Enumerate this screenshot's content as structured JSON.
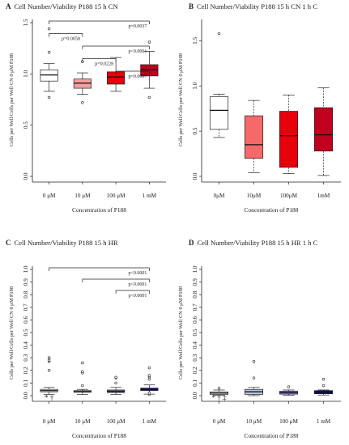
{
  "charts": [
    {
      "letter": "A",
      "title": "Cell Number/Viability P188 15 h CN",
      "type": "box",
      "categories": [
        "0 μM",
        "10 μM",
        "100 μM",
        "1 mM"
      ],
      "xlabel": "Concentration of P188",
      "ylabel": "Cells per Well/Cells per Well CN 0 μM P188",
      "ylim": [
        0,
        1.5
      ],
      "yticks": [
        0.0,
        0.5,
        1.0,
        1.5
      ],
      "ytick_labels": [
        "0.0",
        "0.5",
        "1.0",
        "1.5"
      ],
      "grid": false,
      "colors": [
        "#ffffff",
        "#f4a0a0",
        "#e8000b",
        "#c0001e"
      ],
      "boxes": [
        {
          "min": 0.83,
          "q1": 0.93,
          "median": 0.99,
          "q3": 1.04,
          "max": 1.1,
          "outliers": [
            0.77,
            1.21,
            1.44
          ]
        },
        {
          "min": 0.8,
          "q1": 0.86,
          "median": 0.91,
          "q3": 0.95,
          "max": 1.01,
          "outliers": [
            0.72,
            1.12
          ]
        },
        {
          "min": 0.83,
          "q1": 0.9,
          "median": 0.97,
          "q3": 1.02,
          "max": 1.16,
          "outliers": []
        },
        {
          "min": 0.86,
          "q1": 0.98,
          "median": 1.04,
          "q3": 1.09,
          "max": 1.22,
          "outliers": [
            0.77,
            1.31
          ]
        }
      ],
      "significance": [
        {
          "from": 0,
          "to": 3,
          "label": "p=0.0037"
        },
        {
          "from": 0,
          "to": 1,
          "label": "p=0.0058"
        },
        {
          "from": 1,
          "to": 3,
          "label": "p<0.0001"
        },
        {
          "from": 1,
          "to": 2,
          "label": "p=0.0228"
        },
        {
          "from": 2,
          "to": 3,
          "label": "p=0.0007"
        }
      ],
      "annotations": []
    },
    {
      "letter": "B",
      "title": "Cell Number/Viability P188 15 h CN 1 h C",
      "type": "box",
      "categories": [
        "0μM",
        "10μM",
        "100μM",
        "1mM"
      ],
      "xlabel": "Concentration of P188",
      "ylabel": "Cells per Well/Cells per Well CN 0 μM P188",
      "ylim": [
        0,
        1.7
      ],
      "yticks": [
        0.0,
        0.5,
        1.0,
        1.5
      ],
      "ytick_labels": [
        "0.0",
        "0.5",
        "1.0",
        "1.5"
      ],
      "grid": false,
      "colors": [
        "#ffffff",
        "#f46a6a",
        "#e8000b",
        "#c0001e"
      ],
      "boxes": [
        {
          "min": 0.43,
          "q1": 0.52,
          "median": 0.73,
          "q3": 0.88,
          "max": 0.91,
          "outliers": [
            1.58
          ]
        },
        {
          "min": 0.04,
          "q1": 0.2,
          "median": 0.35,
          "q3": 0.67,
          "max": 0.84,
          "outliers": []
        },
        {
          "min": 0.03,
          "q1": 0.1,
          "median": 0.45,
          "q3": 0.72,
          "max": 0.9,
          "outliers": []
        },
        {
          "min": 0.01,
          "q1": 0.28,
          "median": 0.46,
          "q3": 0.76,
          "max": 0.98,
          "outliers": []
        }
      ],
      "significance": [],
      "annotations": []
    },
    {
      "letter": "C",
      "title": "Cell Number/Viability P188 15 h HR",
      "type": "box",
      "categories": [
        "0 μM",
        "10 μM",
        "100 μM",
        "1 mM"
      ],
      "xlabel": "Concentration of P188",
      "ylabel": "Cells per Well/Cells per Well CN 0 μM P188",
      "ylim": [
        0,
        1.0
      ],
      "yticks": [
        0.0,
        0.1,
        0.2,
        0.3,
        0.4,
        0.5,
        0.6,
        0.7,
        0.8,
        0.9,
        1.0
      ],
      "ytick_labels": [
        "0.0",
        "0.1",
        "0.2",
        "0.3",
        "0.4",
        "0.5",
        "0.6",
        "0.7",
        "0.8",
        "0.9",
        "1.0"
      ],
      "grid": false,
      "colors": [
        "#ffffff",
        "#d8dce8",
        "#6f6bc0",
        "#1a1a8a"
      ],
      "boxes": [
        {
          "min": 0.01,
          "q1": 0.03,
          "median": 0.04,
          "q3": 0.05,
          "max": 0.065,
          "outliers": [
            0.2,
            0.27,
            0.28,
            0.3,
            0.3
          ]
        },
        {
          "min": 0.01,
          "q1": 0.027,
          "median": 0.032,
          "q3": 0.04,
          "max": 0.05,
          "outliers": [
            0.08,
            0.18,
            0.19,
            0.26
          ]
        },
        {
          "min": 0.01,
          "q1": 0.025,
          "median": 0.033,
          "q3": 0.045,
          "max": 0.065,
          "outliers": [
            0.1,
            0.14,
            0.145
          ]
        },
        {
          "min": 0.012,
          "q1": 0.04,
          "median": 0.05,
          "q3": 0.06,
          "max": 0.085,
          "outliers": [
            0.01,
            0.02,
            0.13,
            0.15,
            0.16,
            0.22
          ]
        }
      ],
      "significance": [
        {
          "from": 0,
          "to": 3,
          "label": "p<0.0001"
        },
        {
          "from": 1,
          "to": 3,
          "label": "p<0.0001"
        },
        {
          "from": 2,
          "to": 3,
          "label": "p<0.0001"
        }
      ],
      "annotations": [
        {
          "category": 0,
          "text": "* †"
        }
      ]
    },
    {
      "letter": "D",
      "title": "Cell Number/Viability P188 15 h HR 1 h C",
      "type": "box",
      "categories": [
        "0 μM",
        "10 μM",
        "100 μM",
        "1 mM"
      ],
      "xlabel": "Concentration of P188",
      "ylabel": "Cells per Well/Cells per Well CN 0 μM P188",
      "ylim": [
        0,
        1.0
      ],
      "yticks": [
        0.0,
        0.1,
        0.2,
        0.3,
        0.4,
        0.5,
        0.6,
        0.7,
        0.8,
        0.9,
        1.0
      ],
      "ytick_labels": [
        "0.0",
        "0.1",
        "0.2",
        "0.3",
        "0.4",
        "0.5",
        "0.6",
        "0.7",
        "0.8",
        "0.9",
        "1.0"
      ],
      "grid": false,
      "colors": [
        "#ffffff",
        "#b8c8e8",
        "#6f6bc0",
        "#0a0a8a"
      ],
      "boxes": [
        {
          "min": 0.003,
          "q1": 0.01,
          "median": 0.02,
          "q3": 0.03,
          "max": 0.045,
          "outliers": [
            0.06
          ]
        },
        {
          "min": 0.0,
          "q1": 0.01,
          "median": 0.03,
          "q3": 0.05,
          "max": 0.065,
          "outliers": [
            0.14,
            0.27
          ]
        },
        {
          "min": 0.003,
          "q1": 0.012,
          "median": 0.025,
          "q3": 0.035,
          "max": 0.045,
          "outliers": [
            0.07
          ]
        },
        {
          "min": 0.005,
          "q1": 0.015,
          "median": 0.027,
          "q3": 0.04,
          "max": 0.045,
          "outliers": [
            0.08,
            0.13
          ]
        }
      ],
      "significance": [],
      "annotations": [
        {
          "category": 0,
          "text": "* † ‡"
        }
      ]
    }
  ],
  "chart_data": [
    {
      "type": "box",
      "title": "Cell Number/Viability P188 15 h CN",
      "categories": [
        "0 μM",
        "10 μM",
        "100 μM",
        "1 mM"
      ],
      "xlabel": "Concentration of P188",
      "ylabel": "Cells per Well/Cells per Well CN 0 μM P188",
      "ylim": [
        0,
        1.5
      ]
    },
    {
      "type": "box",
      "title": "Cell Number/Viability P188 15 h CN 1 h C",
      "categories": [
        "0μM",
        "10μM",
        "100μM",
        "1mM"
      ],
      "xlabel": "Concentration of P188",
      "ylabel": "Cells per Well/Cells per Well CN 0 μM P188",
      "ylim": [
        0,
        1.7
      ]
    },
    {
      "type": "box",
      "title": "Cell Number/Viability P188 15 h HR",
      "categories": [
        "0 μM",
        "10 μM",
        "100 μM",
        "1 mM"
      ],
      "xlabel": "Concentration of P188",
      "ylabel": "Cells per Well/Cells per Well CN 0 μM P188",
      "ylim": [
        0,
        1.0
      ]
    },
    {
      "type": "box",
      "title": "Cell Number/Viability P188 15 h HR 1 h C",
      "categories": [
        "0 μM",
        "10 μM",
        "100 μM",
        "1 mM"
      ],
      "xlabel": "Concentration of P188",
      "ylabel": "Cells per Well/Cells per Well CN 0 μM P188",
      "ylim": [
        0,
        1.0
      ]
    }
  ]
}
